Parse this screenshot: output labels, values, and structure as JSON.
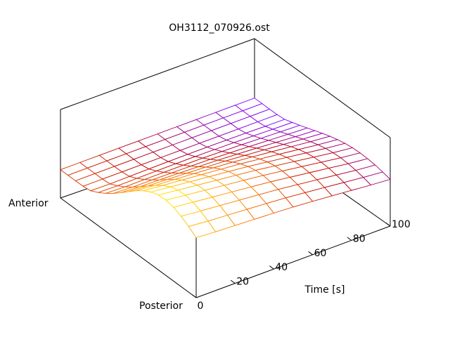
{
  "chart_data": {
    "type": "surface",
    "title": "OH3112_070926.ost",
    "xlabel": "Time [s]",
    "x_range": [
      0,
      100
    ],
    "x_ticks": [
      0,
      20,
      40,
      60,
      80,
      100
    ],
    "y_label_low": "Anterior",
    "y_label_high": "Posterior",
    "z_axis_ticks_shown": false,
    "grid": false,
    "colormap": [
      "#ffff00",
      "#ff7f00",
      "#bf0000",
      "#7f00ff"
    ],
    "surface_rows_time": [
      0,
      10,
      20,
      30,
      40,
      50,
      60,
      70,
      80,
      90,
      100
    ],
    "surface_columns": 19,
    "surface_peak_position": 0.25,
    "surface_amplitude": [
      0.88,
      0.84,
      0.8,
      0.76,
      0.72,
      0.68,
      0.63,
      0.58,
      0.53,
      0.48,
      0.44
    ],
    "surface_spread": [
      0.38,
      0.38,
      0.39,
      0.4,
      0.41,
      0.42,
      0.43,
      0.44,
      0.45,
      0.46,
      0.47
    ]
  }
}
